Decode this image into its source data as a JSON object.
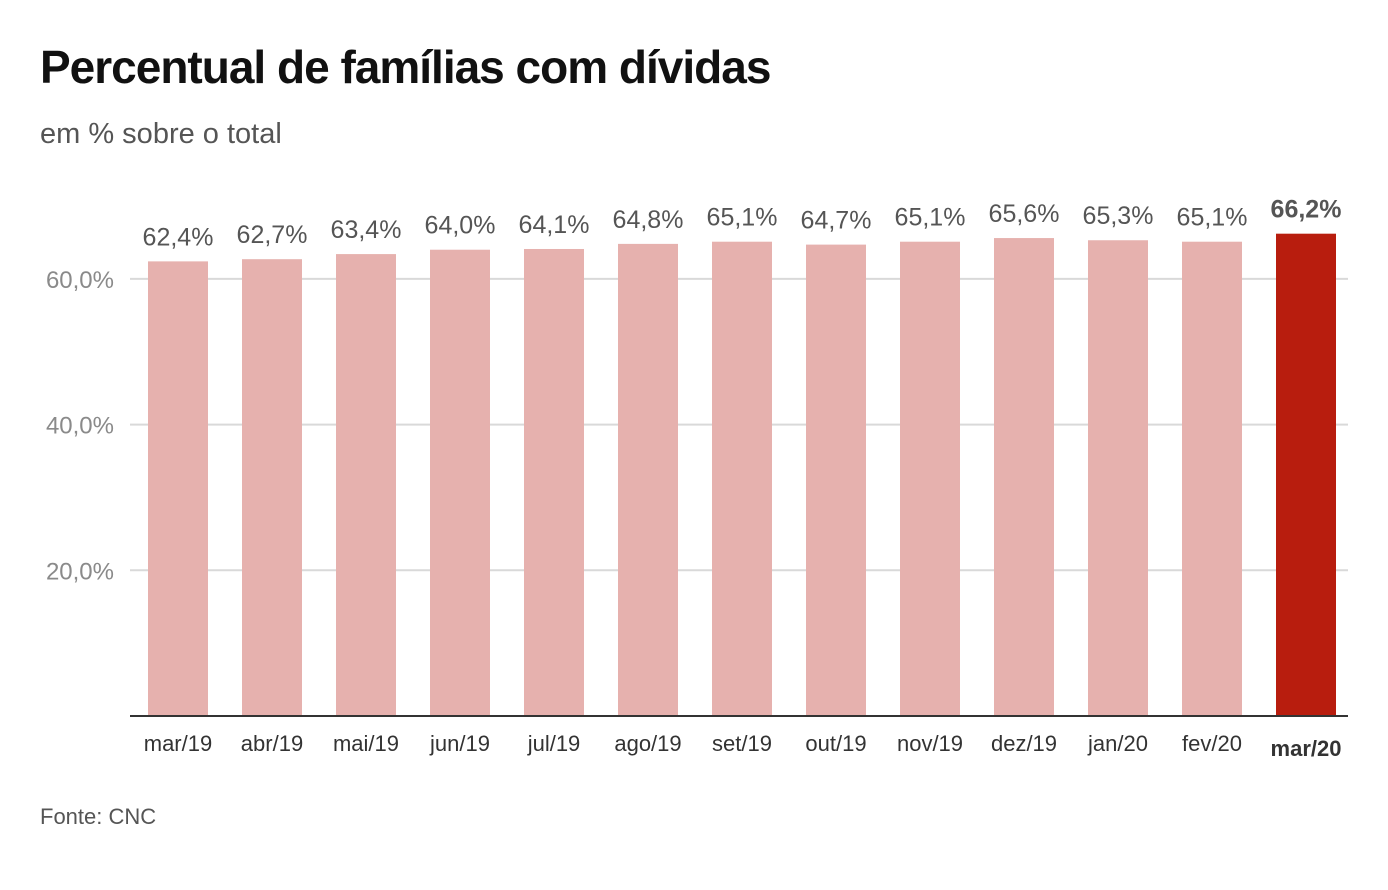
{
  "title": "Percentual de famílias com dívidas",
  "subtitle": "em % sobre o total",
  "source": "Fonte: CNC",
  "colors": {
    "bar": "#e6b1ae",
    "highlight": "#b81d0e",
    "grid": "#d9d9d9",
    "axis": "#333333"
  },
  "chart_data": {
    "type": "bar",
    "categories": [
      "mar/19",
      "abr/19",
      "mai/19",
      "jun/19",
      "jul/19",
      "ago/19",
      "set/19",
      "out/19",
      "nov/19",
      "dez/19",
      "jan/20",
      "fev/20",
      "mar/20"
    ],
    "values": [
      62.4,
      62.7,
      63.4,
      64.0,
      64.1,
      64.8,
      65.1,
      64.7,
      65.1,
      65.6,
      65.3,
      65.1,
      66.2
    ],
    "data_labels": [
      "62,4%",
      "62,7%",
      "63,4%",
      "64,0%",
      "64,1%",
      "64,8%",
      "65,1%",
      "64,7%",
      "65,1%",
      "65,6%",
      "65,3%",
      "65,1%",
      "66,2%"
    ],
    "highlight_index": 12,
    "ylim": [
      0,
      70
    ],
    "yticks": [
      20,
      40,
      60
    ],
    "ytick_labels": [
      "20,0%",
      "40,0%",
      "60,0%"
    ],
    "grid": true,
    "xlabel": "",
    "ylabel": ""
  }
}
